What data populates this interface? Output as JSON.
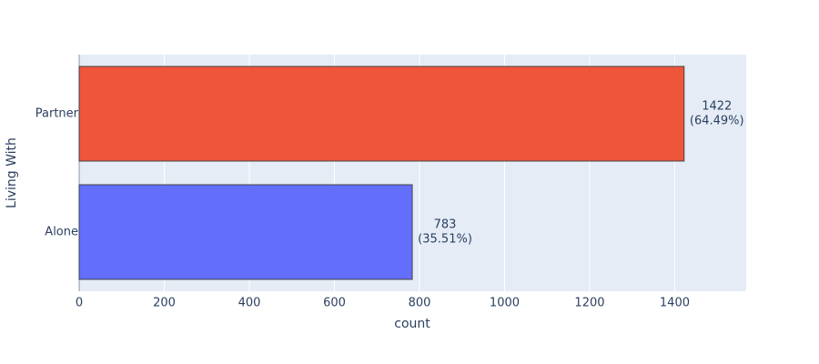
{
  "chart_data": {
    "type": "bar",
    "orientation": "horizontal",
    "x_label": "count",
    "y_label": "Living With",
    "categories": [
      "Alone",
      "Partner"
    ],
    "values": [
      783,
      1422
    ],
    "value_labels": [
      [
        "783",
        "(35.51%)"
      ],
      [
        "1422",
        "(64.49%)"
      ]
    ],
    "colors": [
      "#636efa",
      "#ef553b"
    ],
    "xlim": [
      0,
      1568
    ],
    "xticks": [
      0,
      200,
      400,
      600,
      800,
      1000,
      1200,
      1400
    ],
    "grid": true
  }
}
